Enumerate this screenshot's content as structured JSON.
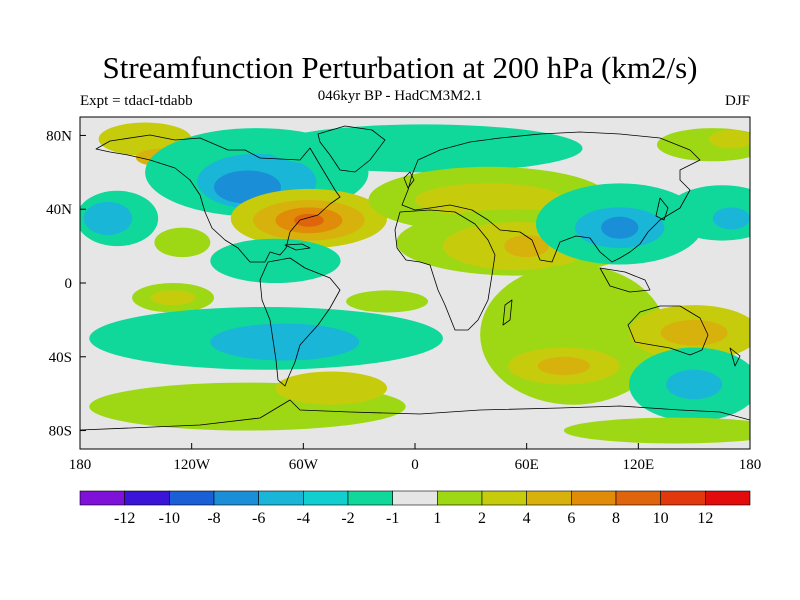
{
  "title": "Streamfunction Perturbation at 200 hPa (km2/s)",
  "subtitle": "046kyr BP - HadCM3M2.1",
  "left_label": "Expt = tdacI-tdabb",
  "right_label": "DJF",
  "map": {
    "projection": "cylindrical equidistant",
    "lon_range": [
      -180,
      180
    ],
    "lat_range": [
      -90,
      90
    ],
    "x_ticks": [
      {
        "lon": -180,
        "label": "180"
      },
      {
        "lon": -120,
        "label": "120W"
      },
      {
        "lon": -60,
        "label": "60W"
      },
      {
        "lon": 0,
        "label": "0"
      },
      {
        "lon": 60,
        "label": "60E"
      },
      {
        "lon": 120,
        "label": "120E"
      },
      {
        "lon": 180,
        "label": "180"
      }
    ],
    "y_ticks": [
      {
        "lat": 80,
        "label": "80N"
      },
      {
        "lat": 40,
        "label": "40N"
      },
      {
        "lat": 0,
        "label": "0"
      },
      {
        "lat": -40,
        "label": "40S"
      },
      {
        "lat": -80,
        "label": "80S"
      }
    ],
    "anomalies": [
      {
        "lon": -145,
        "lat": 78,
        "rlon": 25,
        "rlat": 9,
        "level": 2
      },
      {
        "lon": -135,
        "lat": 68,
        "rlon": 15,
        "rlat": 5,
        "level": 4
      },
      {
        "lon": -85,
        "lat": 60,
        "rlon": 60,
        "rlat": 24,
        "level": -2
      },
      {
        "lon": -85,
        "lat": 55,
        "rlon": 32,
        "rlat": 15,
        "level": -4
      },
      {
        "lon": -90,
        "lat": 52,
        "rlon": 18,
        "rlat": 9,
        "level": -6
      },
      {
        "lon": -57,
        "lat": 35,
        "rlon": 42,
        "rlat": 16,
        "level": 2
      },
      {
        "lon": -57,
        "lat": 34,
        "rlon": 30,
        "rlat": 11,
        "level": 4
      },
      {
        "lon": -57,
        "lat": 34,
        "rlon": 18,
        "rlat": 7,
        "level": 6
      },
      {
        "lon": -57,
        "lat": 34,
        "rlon": 8,
        "rlat": 3.5,
        "level": 8
      },
      {
        "lon": -160,
        "lat": 35,
        "rlon": 22,
        "rlat": 15,
        "level": -2
      },
      {
        "lon": -165,
        "lat": 35,
        "rlon": 13,
        "rlat": 9,
        "level": -4
      },
      {
        "lon": -75,
        "lat": 12,
        "rlon": 35,
        "rlat": 12,
        "level": -2
      },
      {
        "lon": -125,
        "lat": 22,
        "rlon": 15,
        "rlat": 8,
        "level": 1
      },
      {
        "lon": -130,
        "lat": -8,
        "rlon": 22,
        "rlat": 8,
        "level": 1
      },
      {
        "lon": -130,
        "lat": -8,
        "rlon": 12,
        "rlat": 4,
        "level": 2
      },
      {
        "lon": -80,
        "lat": -30,
        "rlon": 95,
        "rlat": 17,
        "level": -2
      },
      {
        "lon": -70,
        "lat": -32,
        "rlon": 40,
        "rlat": 10,
        "level": -4
      },
      {
        "lon": -90,
        "lat": -67,
        "rlon": 85,
        "rlat": 13,
        "level": 1
      },
      {
        "lon": -45,
        "lat": -57,
        "rlon": 30,
        "rlat": 9,
        "level": 2
      },
      {
        "lon": 5,
        "lat": 73,
        "rlon": 85,
        "rlat": 13,
        "level": -2
      },
      {
        "lon": 40,
        "lat": 45,
        "rlon": 65,
        "rlat": 18,
        "level": 1
      },
      {
        "lon": 40,
        "lat": 45,
        "rlon": 40,
        "rlat": 9,
        "level": 2
      },
      {
        "lon": 55,
        "lat": 22,
        "rlon": 65,
        "rlat": 18,
        "level": 1
      },
      {
        "lon": 55,
        "lat": 20,
        "rlon": 40,
        "rlat": 13,
        "level": 2
      },
      {
        "lon": 60,
        "lat": 20,
        "rlon": 12,
        "rlat": 6,
        "level": 4
      },
      {
        "lon": 110,
        "lat": 32,
        "rlon": 45,
        "rlat": 22,
        "level": -2
      },
      {
        "lon": 110,
        "lat": 30,
        "rlon": 24,
        "rlat": 11,
        "level": -4
      },
      {
        "lon": 110,
        "lat": 30,
        "rlon": 10,
        "rlat": 6,
        "level": -6
      },
      {
        "lon": 165,
        "lat": 38,
        "rlon": 30,
        "rlat": 15,
        "level": -2
      },
      {
        "lon": 170,
        "lat": 35,
        "rlon": 10,
        "rlat": 6,
        "level": -4
      },
      {
        "lon": 160,
        "lat": 75,
        "rlon": 30,
        "rlat": 9,
        "level": 1
      },
      {
        "lon": 170,
        "lat": 78,
        "rlon": 12,
        "rlat": 5,
        "level": 2
      },
      {
        "lon": 85,
        "lat": -28,
        "rlon": 50,
        "rlat": 38,
        "level": 1
      },
      {
        "lon": 80,
        "lat": -45,
        "rlon": 30,
        "rlat": 10,
        "level": 2
      },
      {
        "lon": 80,
        "lat": -45,
        "rlon": 14,
        "rlat": 5,
        "level": 4
      },
      {
        "lon": 150,
        "lat": -27,
        "rlon": 35,
        "rlat": 15,
        "level": 2
      },
      {
        "lon": 150,
        "lat": -27,
        "rlon": 18,
        "rlat": 7,
        "level": 4
      },
      {
        "lon": 150,
        "lat": -55,
        "rlon": 35,
        "rlat": 20,
        "level": -2
      },
      {
        "lon": 150,
        "lat": -55,
        "rlon": 15,
        "rlat": 8,
        "level": -4
      },
      {
        "lon": 140,
        "lat": -80,
        "rlon": 60,
        "rlat": 7,
        "level": 1
      },
      {
        "lon": -15,
        "lat": -10,
        "rlon": 22,
        "rlat": 6,
        "level": 1
      }
    ]
  },
  "colorbar": {
    "colors": [
      "#7f12d8",
      "#3a14d8",
      "#1a5fd6",
      "#1b8ed8",
      "#19b6d8",
      "#12cfcf",
      "#0fd89a",
      "#e6e6e6",
      "#9ed814",
      "#c6cc0c",
      "#d8b20c",
      "#e08c08",
      "#e0640c",
      "#e2380e",
      "#e20c0c"
    ],
    "labels": [
      "-12",
      "-10",
      "-8",
      "-6",
      "-4",
      "-2",
      "-1",
      "1",
      "2",
      "4",
      "6",
      "8",
      "10",
      "12"
    ]
  }
}
